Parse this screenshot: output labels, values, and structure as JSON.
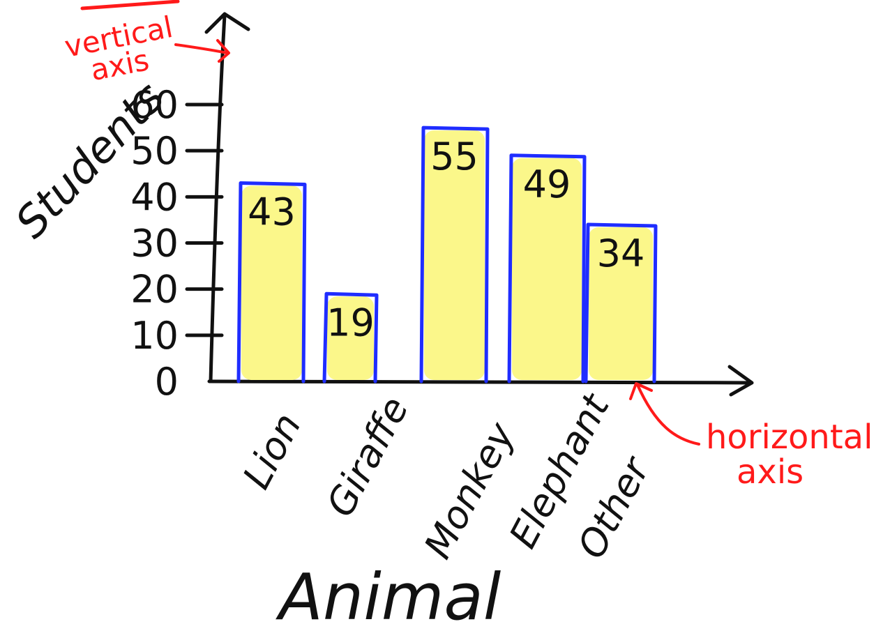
{
  "colors": {
    "ink": "#111111",
    "bar_fill": "#fbf78a",
    "bar_outline": "#1f2dff",
    "annotation": "#ff1a1a"
  },
  "annotations": {
    "vertical_axis": "vertical\naxis",
    "horizontal_axis": "horizontal\naxis"
  },
  "chart_data": {
    "type": "bar",
    "title": "",
    "xlabel": "Animal",
    "ylabel": "Students",
    "categories": [
      "Lion",
      "Giraffe",
      "Monkey",
      "Elephant",
      "Other"
    ],
    "values": [
      43,
      19,
      55,
      49,
      34
    ],
    "data_labels": [
      "43",
      "19",
      "55",
      "49",
      "34"
    ],
    "yticks": [
      0,
      10,
      20,
      30,
      40,
      50,
      60
    ],
    "ytick_labels": [
      "0",
      "10",
      "20",
      "30",
      "40",
      "50",
      "60"
    ],
    "ylim": [
      0,
      60
    ],
    "grid": false,
    "legend": false
  }
}
